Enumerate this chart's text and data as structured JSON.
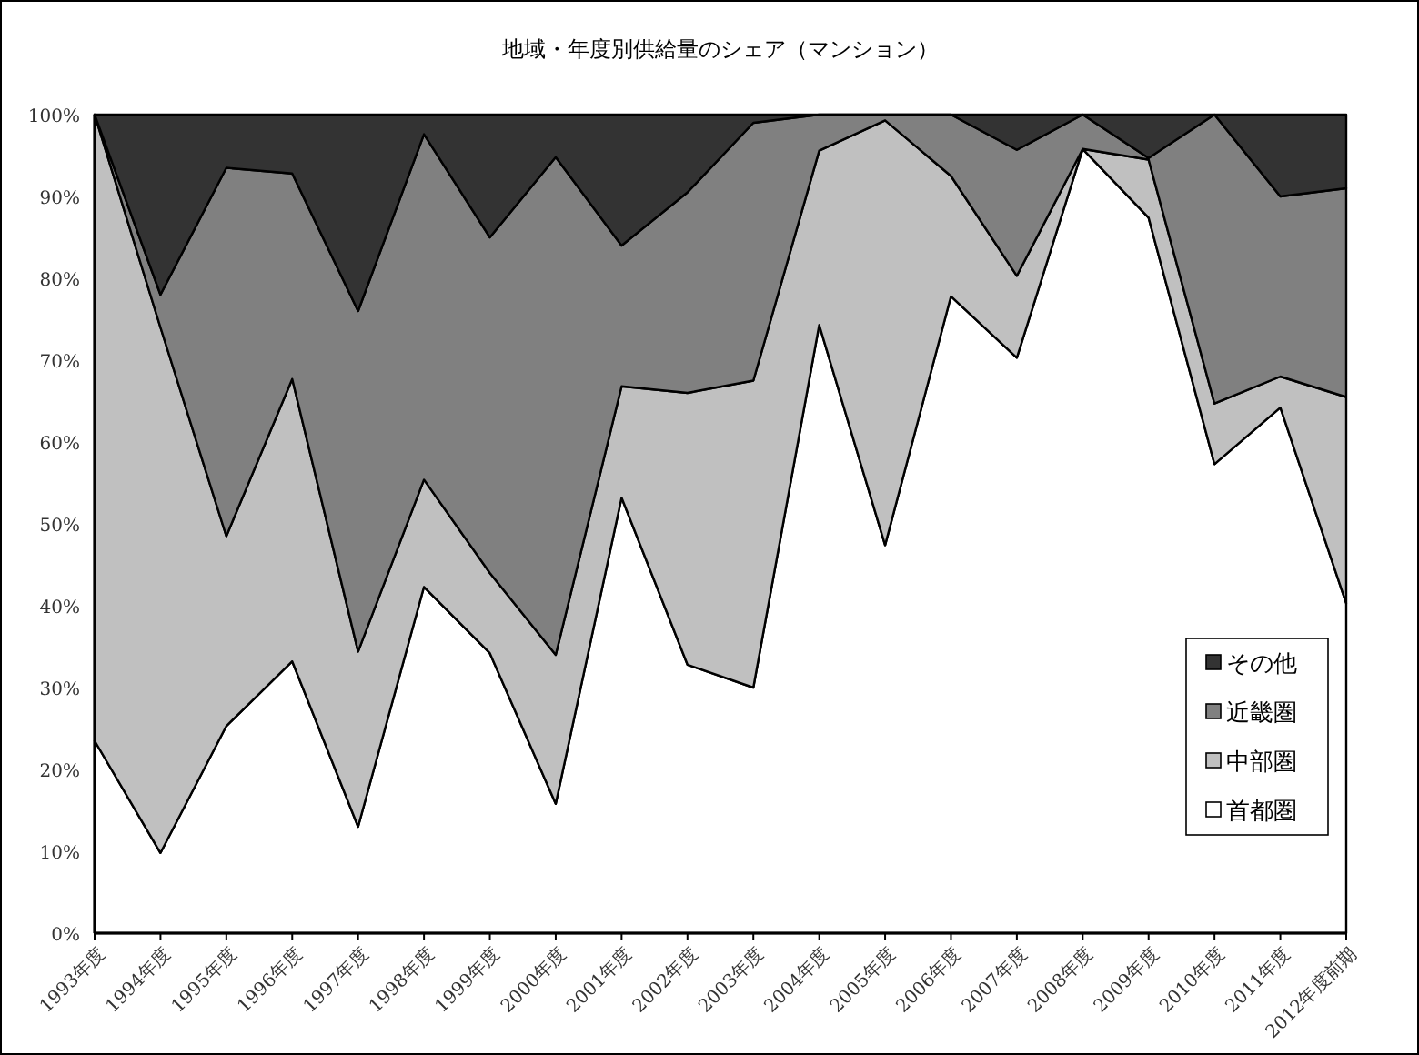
{
  "chart_data": {
    "type": "area",
    "stacked": true,
    "title": "地域・年度別供給量のシェア（マンション）",
    "categories": [
      "1993年度",
      "1994年度",
      "1995年度",
      "1996年度",
      "1997年度",
      "1998年度",
      "1999年度",
      "2000年度",
      "2001年度",
      "2002年度",
      "2003年度",
      "2004年度",
      "2005年度",
      "2006年度",
      "2007年度",
      "2008年度",
      "2009年度",
      "2010年度",
      "2011年度",
      "2012年度前期"
    ],
    "series": [
      {
        "name": "首都圏",
        "color": "#ffffff",
        "values": [
          23.5,
          9.8,
          25.3,
          33.2,
          13,
          42.3,
          34.2,
          15.8,
          53.2,
          32.8,
          30,
          74.3,
          47.4,
          77.8,
          70.3,
          95.8,
          87.4,
          57.3,
          64.2,
          40.3
        ]
      },
      {
        "name": "中部圏",
        "color": "#c0c0c0",
        "values": [
          76.5,
          64.2,
          23.2,
          34.5,
          21.4,
          13.1,
          9.8,
          18.2,
          13.6,
          33.2,
          37.5,
          21.3,
          51.9,
          14.7,
          10,
          0,
          7.1,
          7.4,
          3.8,
          25.2
        ]
      },
      {
        "name": "近畿圏",
        "color": "#808080",
        "values": [
          0,
          4,
          45,
          25.1,
          41.6,
          42.2,
          41,
          60.8,
          17.2,
          24.5,
          31.5,
          4.4,
          0.7,
          7.5,
          15.4,
          4.2,
          0.2,
          35.3,
          22,
          25.5
        ]
      },
      {
        "name": "その他",
        "color": "#333333",
        "values": [
          0,
          22,
          6.5,
          7.2,
          24,
          2.4,
          15,
          5.2,
          16,
          9.5,
          1,
          0,
          0,
          0,
          4.3,
          0,
          5.3,
          0,
          10,
          9
        ]
      }
    ],
    "ylim": [
      0,
      100
    ],
    "yticks": [
      {
        "value": 0,
        "label": "0%"
      },
      {
        "value": 10,
        "label": "10%"
      },
      {
        "value": 20,
        "label": "20%"
      },
      {
        "value": 30,
        "label": "30%"
      },
      {
        "value": 40,
        "label": "40%"
      },
      {
        "value": 50,
        "label": "50%"
      },
      {
        "value": 60,
        "label": "60%"
      },
      {
        "value": 70,
        "label": "70%"
      },
      {
        "value": 80,
        "label": "80%"
      },
      {
        "value": 90,
        "label": "90%"
      },
      {
        "value": 100,
        "label": "100%"
      }
    ],
    "legend": "right"
  }
}
